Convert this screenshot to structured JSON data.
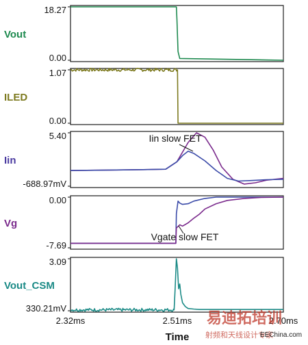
{
  "chart_data": {
    "type": "line",
    "xlabel": "Time",
    "x_ticks": [
      "2.32ms",
      "2.51ms",
      "2.70ms"
    ],
    "xlim_ms": [
      2.32,
      2.7
    ],
    "grid": false,
    "panels": [
      {
        "id": "vout",
        "name": "Vout",
        "color": "#1e8a4f",
        "y_ticks": [
          "18.27",
          "0.00"
        ],
        "ylim": [
          0.0,
          18.27
        ],
        "series": [
          {
            "color": "#1e8a4f",
            "x": [
              2.32,
              2.509,
              2.51,
              2.512,
              2.515,
              2.7
            ],
            "y": [
              18.27,
              18.27,
              14.0,
              3.0,
              0.6,
              0.0
            ]
          }
        ]
      },
      {
        "id": "iled",
        "name": "ILED",
        "color": "#7d7a1f",
        "y_ticks": [
          "1.07",
          "0.00"
        ],
        "ylim": [
          0.0,
          1.07
        ],
        "series": [
          {
            "color": "#7d7a1f",
            "noise": 0.03,
            "noise_until": 2.511,
            "x": [
              2.32,
              2.511,
              2.512,
              2.7
            ],
            "y": [
              1.07,
              1.07,
              0.0,
              0.0
            ]
          }
        ]
      },
      {
        "id": "iin",
        "name": "Iin",
        "color": "#4a3aa0",
        "y_ticks": [
          "5.40",
          "-688.97mV"
        ],
        "ylim": [
          -0.68897,
          5.4
        ],
        "annotation": "Iin slow FET",
        "series": [
          {
            "color": "#7a2a8c",
            "x": [
              2.32,
              2.39,
              2.45,
              2.49,
              2.51,
              2.53,
              2.545,
              2.56,
              2.575,
              2.59,
              2.61,
              2.63,
              2.65,
              2.67,
              2.7
            ],
            "y": [
              1.1,
              1.15,
              1.2,
              1.25,
              2.1,
              4.3,
              5.4,
              4.9,
              3.4,
              1.5,
              0.1,
              -0.45,
              -0.3,
              0.0,
              0.2
            ]
          },
          {
            "color": "#3a4aa8",
            "x": [
              2.32,
              2.39,
              2.45,
              2.49,
              2.51,
              2.52,
              2.53,
              2.54,
              2.56,
              2.58,
              2.6,
              2.62,
              2.64,
              2.67,
              2.7
            ],
            "y": [
              1.1,
              1.15,
              1.2,
              1.25,
              2.1,
              2.8,
              3.3,
              3.05,
              2.2,
              1.1,
              0.2,
              -0.1,
              -0.05,
              0.05,
              0.1
            ]
          }
        ]
      },
      {
        "id": "vg",
        "name": "Vg",
        "color": "#7a2a8c",
        "y_ticks": [
          "0.00",
          "-7.69"
        ],
        "ylim": [
          -7.69,
          0.0
        ],
        "annotation": "Vgate slow FET",
        "series": [
          {
            "color": "#3a4aa8",
            "x": [
              2.32,
              2.508,
              2.509,
              2.512,
              2.515,
              2.52,
              2.53,
              2.54,
              2.56,
              2.58,
              2.6,
              2.7
            ],
            "y": [
              -7.0,
              -7.0,
              -2.5,
              -0.6,
              -0.9,
              -1.1,
              -1.0,
              -0.6,
              -0.2,
              0.0,
              0.0,
              0.0
            ]
          },
          {
            "color": "#7a2a8c",
            "x": [
              2.32,
              2.508,
              2.509,
              2.515,
              2.52,
              2.53,
              2.54,
              2.55,
              2.56,
              2.58,
              2.6,
              2.63,
              2.66,
              2.7
            ],
            "y": [
              -7.0,
              -7.0,
              -4.7,
              -4.2,
              -4.4,
              -3.9,
              -3.2,
              -2.6,
              -1.8,
              -1.0,
              -0.5,
              -0.2,
              -0.05,
              0.0
            ]
          }
        ]
      },
      {
        "id": "vout_csm",
        "name": "Vout_CSM",
        "color": "#1a8a86",
        "y_ticks": [
          "3.09",
          "330.21mV"
        ],
        "ylim": [
          0.33021,
          3.09
        ],
        "series": [
          {
            "color": "#1a8a86",
            "noise": 0.03,
            "noise_until": 2.504,
            "x": [
              2.32,
              2.505,
              2.507,
              2.509,
              2.511,
              2.513,
              2.515,
              2.517,
              2.52,
              2.525,
              2.53,
              2.54,
              2.55,
              2.57,
              2.6,
              2.7
            ],
            "y": [
              0.38,
              0.38,
              1.6,
              3.09,
              2.6,
              1.5,
              1.75,
              1.2,
              0.75,
              0.55,
              0.45,
              0.42,
              0.4,
              0.4,
              0.4,
              0.4
            ]
          }
        ]
      }
    ]
  },
  "watermark": {
    "brand_big": "易迪拓培训",
    "brand_small": "射频和天线设计专家",
    "url": "EEChina.com"
  }
}
